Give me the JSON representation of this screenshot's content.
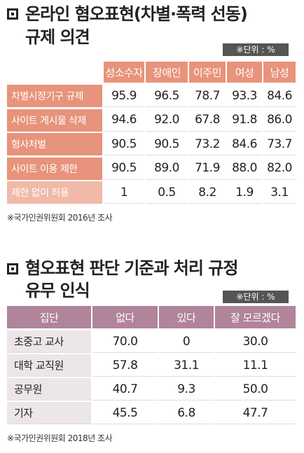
{
  "table1": {
    "title_lines": [
      "온라인 혐오표현(차별·폭력 선동)",
      "규제 의견"
    ],
    "unit": "※단위 : %",
    "columns": [
      "성소수자",
      "장애인",
      "이주민",
      "여성",
      "남성"
    ],
    "rows": [
      {
        "label": "차별시정기구 규제",
        "values": [
          "95.9",
          "96.5",
          "78.7",
          "93.3",
          "84.6"
        ]
      },
      {
        "label": "사이트 게시물 삭제",
        "values": [
          "94.6",
          "92.0",
          "67.8",
          "91.8",
          "86.0"
        ]
      },
      {
        "label": "형사처벌",
        "values": [
          "90.5",
          "90.5",
          "73.2",
          "84.6",
          "73.7"
        ]
      },
      {
        "label": "사이트 이용 제한",
        "values": [
          "90.5",
          "89.0",
          "71.9",
          "88.0",
          "82.0"
        ]
      },
      {
        "label": "제한 없이 허용",
        "values": [
          "1",
          "0.5",
          "8.2",
          "1.9",
          "3.1"
        ]
      }
    ],
    "source": "※국가인권위원회 2016년 조사"
  },
  "table2": {
    "title_lines": [
      "혐오표현 판단 기준과 처리 규정",
      "유무 인식"
    ],
    "unit": "※단위 : %",
    "columns": [
      "집단",
      "없다",
      "있다",
      "잘 모르겠다"
    ],
    "rows": [
      [
        "초중고 교사",
        "70.0",
        "0",
        "30.0"
      ],
      [
        "대학 교직원",
        "57.8",
        "31.1",
        "11.1"
      ],
      [
        "공무원",
        "40.7",
        "9.3",
        "50.0"
      ],
      [
        "기자",
        "45.5",
        "6.8",
        "47.7"
      ]
    ],
    "source": "※국가인권위원회 2018년 조사"
  }
}
